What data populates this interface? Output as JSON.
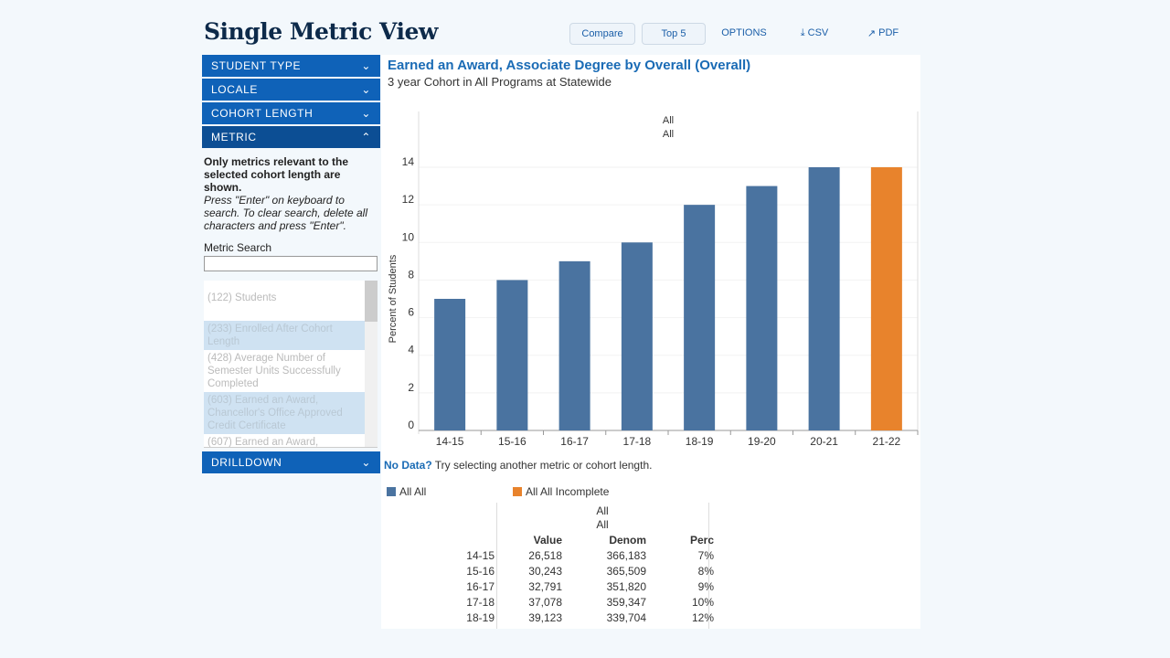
{
  "header": {
    "title": "Single Metric View",
    "compare": "Compare",
    "top5": "Top 5",
    "options": "OPTIONS",
    "csv": "CSV",
    "pdf": "PDF"
  },
  "sidebar": {
    "sections": [
      "STUDENT TYPE",
      "LOCALE",
      "COHORT LENGTH",
      "METRIC"
    ],
    "drilldown": "DRILLDOWN",
    "note_bold": "Only metrics relevant to the selected cohort length are shown.",
    "note_italic": "Press \"Enter\" on keyboard to search. To clear search, delete all characters and press \"Enter\".",
    "search_label": "Metric Search",
    "search_value": "",
    "metrics": [
      "(122) Students",
      "(233) Enrolled After Cohort Length",
      "(428) Average Number of Semester Units Successfully Completed",
      "(603) Earned an Award, Chancellor's Office Approved Credit Certificate",
      "(607) Earned an Award,"
    ]
  },
  "chart_data": {
    "type": "bar",
    "title": "Earned an Award, Associate Degree by Overall (Overall)",
    "subtitle": "3 year Cohort in All Programs at Statewide",
    "header_labels": [
      "All",
      "All"
    ],
    "ylabel": "Percent of Students",
    "ylim": [
      0,
      14
    ],
    "yticks": [
      0,
      2,
      4,
      6,
      8,
      10,
      12,
      14
    ],
    "categories": [
      "14-15",
      "15-16",
      "16-17",
      "17-18",
      "18-19",
      "19-20",
      "20-21",
      "21-22"
    ],
    "values": [
      7,
      8,
      9,
      10,
      12,
      13,
      14,
      14
    ],
    "series_colors": [
      "#4a73a0",
      "#4a73a0",
      "#4a73a0",
      "#4a73a0",
      "#4a73a0",
      "#4a73a0",
      "#4a73a0",
      "#e8832c"
    ],
    "legend": [
      {
        "name": "All All",
        "color": "#4a73a0"
      },
      {
        "name": "All All Incomplete",
        "color": "#e8832c"
      }
    ]
  },
  "no_data": {
    "bold": "No Data?",
    "text": " Try selecting another metric or cohort length."
  },
  "table": {
    "group1": "All",
    "group2": "All",
    "columns": [
      "Value",
      "Denom",
      "Perc"
    ],
    "rows": [
      {
        "year": "14-15",
        "value": "26,518",
        "denom": "366,183",
        "perc": "7%"
      },
      {
        "year": "15-16",
        "value": "30,243",
        "denom": "365,509",
        "perc": "8%"
      },
      {
        "year": "16-17",
        "value": "32,791",
        "denom": "351,820",
        "perc": "9%"
      },
      {
        "year": "17-18",
        "value": "37,078",
        "denom": "359,347",
        "perc": "10%"
      },
      {
        "year": "18-19",
        "value": "39,123",
        "denom": "339,704",
        "perc": "12%"
      }
    ]
  }
}
